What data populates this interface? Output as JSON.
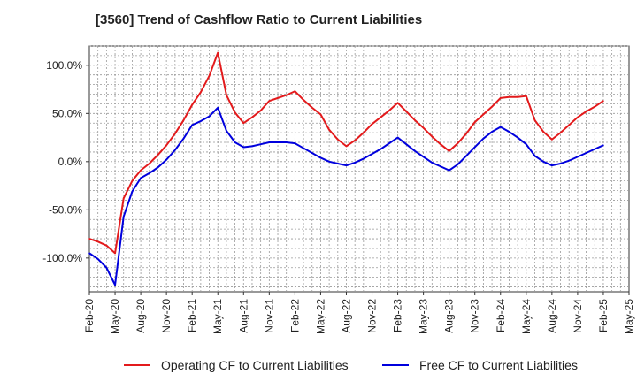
{
  "chart_data": {
    "type": "line",
    "title": "[3560]  Trend of Cashflow Ratio to Current Liabilities",
    "xlabel": "",
    "ylabel": "",
    "ylim": [
      -135,
      120
    ],
    "y_ticks": [
      100,
      50,
      0,
      -50,
      -100
    ],
    "y_tick_labels": [
      "100.0%",
      "50.0%",
      "0.0%",
      "-50.0%",
      "-100.0%"
    ],
    "x_tick_labels": [
      "Feb-20",
      "May-20",
      "Aug-20",
      "Nov-20",
      "Feb-21",
      "May-21",
      "Aug-21",
      "Nov-21",
      "Feb-22",
      "May-22",
      "Aug-22",
      "Nov-22",
      "Feb-23",
      "May-23",
      "Aug-23",
      "Nov-23",
      "Feb-24",
      "May-24",
      "Aug-24",
      "Nov-24",
      "Feb-25",
      "May-25"
    ],
    "grid": true,
    "legend_position": "bottom",
    "x": [
      "Feb-20",
      "Mar-20",
      "Apr-20",
      "May-20",
      "Jun-20",
      "Jul-20",
      "Aug-20",
      "Sep-20",
      "Oct-20",
      "Nov-20",
      "Dec-20",
      "Jan-21",
      "Feb-21",
      "Mar-21",
      "Apr-21",
      "May-21",
      "Jun-21",
      "Jul-21",
      "Aug-21",
      "Sep-21",
      "Oct-21",
      "Nov-21",
      "Dec-21",
      "Jan-22",
      "Feb-22",
      "Mar-22",
      "Apr-22",
      "May-22",
      "Jun-22",
      "Jul-22",
      "Aug-22",
      "Sep-22",
      "Oct-22",
      "Nov-22",
      "Dec-22",
      "Jan-23",
      "Feb-23",
      "Mar-23",
      "Apr-23",
      "May-23",
      "Jun-23",
      "Jul-23",
      "Aug-23",
      "Sep-23",
      "Oct-23",
      "Nov-23",
      "Dec-23",
      "Jan-24",
      "Feb-24",
      "Mar-24",
      "Apr-24",
      "May-24",
      "Jun-24",
      "Jul-24",
      "Aug-24",
      "Sep-24",
      "Oct-24",
      "Nov-24",
      "Dec-24",
      "Jan-25",
      "Feb-25"
    ],
    "series": [
      {
        "name": "Operating CF to Current Liabilities",
        "color": "#e31a1c",
        "values": [
          -80,
          -83,
          -87,
          -95,
          -38,
          -20,
          -9,
          -2,
          7,
          17,
          29,
          43,
          59,
          72,
          89,
          113,
          69,
          51,
          40,
          46,
          53,
          63,
          66,
          69,
          73,
          64,
          56,
          49,
          33,
          23,
          16,
          22,
          30,
          39,
          46,
          53,
          61,
          52,
          43,
          35,
          26,
          18,
          11,
          19,
          29,
          41,
          49,
          57,
          66,
          67,
          67,
          68,
          43,
          31,
          23,
          30,
          38,
          46,
          52,
          57,
          63
        ]
      },
      {
        "name": "Free CF to Current Liabilities",
        "color": "#0000dd",
        "values": [
          -95,
          -101,
          -110,
          -128,
          -57,
          -31,
          -17,
          -12,
          -6,
          2,
          12,
          24,
          38,
          42,
          47,
          56,
          32,
          20,
          15,
          16,
          18,
          20,
          20,
          20,
          19,
          14,
          9,
          4,
          0,
          -2,
          -4,
          -1,
          3,
          8,
          13,
          19,
          25,
          18,
          11,
          5,
          -1,
          -5,
          -9,
          -3,
          6,
          15,
          24,
          31,
          36,
          31,
          25,
          18,
          6,
          0,
          -4,
          -2,
          1,
          5,
          9,
          13,
          17
        ]
      }
    ]
  }
}
